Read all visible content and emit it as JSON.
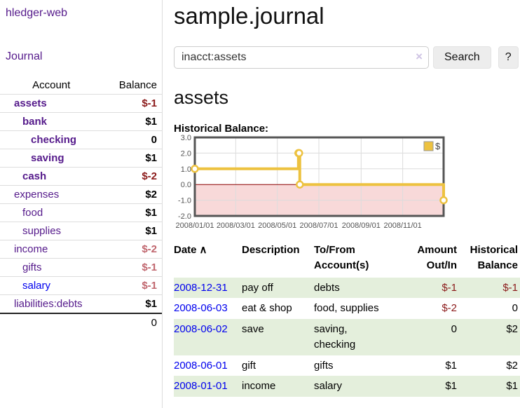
{
  "app": {
    "brand": "hledger-web"
  },
  "colors": {
    "link_purple": "#551a8b",
    "link_blue": "#0000ee",
    "negative_strong": "#8b1a1a",
    "negative_soft": "#c0666e",
    "stripe_green": "#e4efdc",
    "chart_series_gold": "#edc240",
    "chart_negative_fill": "#f8d9d9",
    "chart_zero_line": "#8b0000"
  },
  "sidebar": {
    "nav": {
      "journal": "Journal"
    },
    "accounts": {
      "headers": {
        "account": "Account",
        "balance": "Balance"
      },
      "rows": [
        {
          "name": "assets",
          "balance": "$-1",
          "level": 1,
          "in_acct": true,
          "balance_tone": "strong"
        },
        {
          "name": "bank",
          "balance": "$1",
          "level": 2,
          "in_acct": true,
          "balance_tone": "black"
        },
        {
          "name": "checking",
          "balance": "0",
          "level": 3,
          "in_acct": true,
          "balance_tone": "black"
        },
        {
          "name": "saving",
          "balance": "$1",
          "level": 3,
          "in_acct": true,
          "balance_tone": "black"
        },
        {
          "name": "cash",
          "balance": "$-2",
          "level": 2,
          "in_acct": true,
          "balance_tone": "strong"
        },
        {
          "name": "expenses",
          "balance": "$2",
          "level": 1,
          "in_acct": false,
          "balance_tone": "black"
        },
        {
          "name": "food",
          "balance": "$1",
          "level": 2,
          "in_acct": false,
          "balance_tone": "black"
        },
        {
          "name": "supplies",
          "balance": "$1",
          "level": 2,
          "in_acct": false,
          "balance_tone": "black"
        },
        {
          "name": "income",
          "balance": "$-2",
          "level": 1,
          "in_acct": false,
          "balance_tone": "soft"
        },
        {
          "name": "gifts",
          "balance": "$-1",
          "level": 2,
          "in_acct": false,
          "balance_tone": "soft"
        },
        {
          "name": "salary",
          "balance": "$-1",
          "level": 2,
          "in_acct": false,
          "balance_tone": "soft",
          "link_color": "blue"
        },
        {
          "name": "liabilities:debts",
          "balance": "$1",
          "level": 1,
          "in_acct": false,
          "balance_tone": "black"
        }
      ],
      "total": "0"
    }
  },
  "main": {
    "title": "sample.journal",
    "search": {
      "value": "inacct:assets",
      "clear_icon": "×",
      "search_button": "Search",
      "help_button": "?"
    },
    "account_heading": "assets",
    "chart_label": "Historical Balance:"
  },
  "chart_data": {
    "type": "line",
    "step": true,
    "title": "Historical Balance",
    "xlabel": "",
    "ylabel": "",
    "ylim": [
      -2,
      3
    ],
    "xlim_days": [
      0,
      365
    ],
    "y_ticks": [
      3.0,
      2.0,
      1.0,
      0.0,
      -1.0,
      -2.0
    ],
    "x_ticks": [
      {
        "day": 0,
        "label": "2008/01/01"
      },
      {
        "day": 60,
        "label": "2008/03/01"
      },
      {
        "day": 121,
        "label": "2008/05/01"
      },
      {
        "day": 182,
        "label": "2008/07/01"
      },
      {
        "day": 244,
        "label": "2008/09/01"
      },
      {
        "day": 305,
        "label": "2008/11/01"
      }
    ],
    "grid": true,
    "legend_position": "top-right",
    "negative_fill": "#f8d9d9",
    "zero_line_color": "#8b0000",
    "series": [
      {
        "name": "$",
        "color": "#edc240",
        "line": [
          [
            0,
            1
          ],
          [
            152,
            1
          ],
          [
            152,
            2
          ],
          [
            154,
            2
          ],
          [
            154,
            0
          ],
          [
            365,
            0
          ],
          [
            365,
            -1
          ]
        ],
        "markers": [
          [
            0,
            1
          ],
          [
            152,
            2
          ],
          [
            153,
            2
          ],
          [
            154,
            0
          ],
          [
            365,
            -1
          ]
        ],
        "points_by_date": [
          {
            "date": "2008-01-01",
            "value": 1
          },
          {
            "date": "2008-06-01",
            "value": 2
          },
          {
            "date": "2008-06-02",
            "value": 2
          },
          {
            "date": "2008-06-03",
            "value": 0
          },
          {
            "date": "2008-12-31",
            "value": -1
          }
        ]
      }
    ]
  },
  "register": {
    "headers": {
      "date": "Date",
      "sort_icon": "∧",
      "description": "Description",
      "accounts": "To/From Account(s)",
      "amount": "Amount Out/In",
      "balance": "Historical Balance"
    },
    "rows": [
      {
        "date": "2008-12-31",
        "description": "pay off",
        "accounts": "debts",
        "amount": "$-1",
        "balance": "$-1"
      },
      {
        "date": "2008-06-03",
        "description": "eat & shop",
        "accounts": "food, supplies",
        "amount": "$-2",
        "balance": "0"
      },
      {
        "date": "2008-06-02",
        "description": "save",
        "accounts": "saving,\nchecking",
        "amount": "0",
        "balance": "$2"
      },
      {
        "date": "2008-06-01",
        "description": "gift",
        "accounts": "gifts",
        "amount": "$1",
        "balance": "$2"
      },
      {
        "date": "2008-01-01",
        "description": "income",
        "accounts": "salary",
        "amount": "$1",
        "balance": "$1"
      }
    ]
  }
}
